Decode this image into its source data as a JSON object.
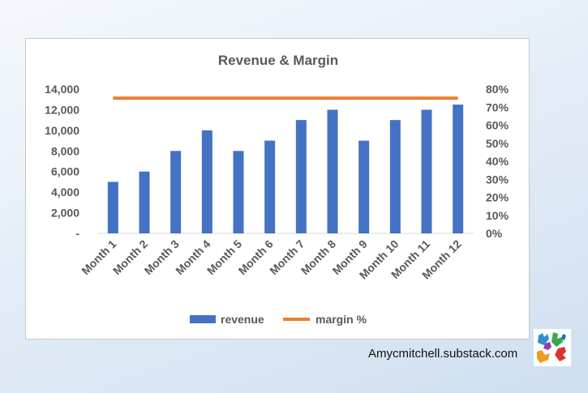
{
  "watermark": {
    "text": "Amycmitchell.substack.com",
    "logo_icon": "colorful-hands-logo"
  },
  "chart_data": {
    "type": "bar",
    "title": "Revenue & Margin",
    "categories": [
      "Month 1",
      "Month 2",
      "Month 3",
      "Month 4",
      "Month 5",
      "Month 6",
      "Month 7",
      "Month 8",
      "Month 9",
      "Month 10",
      "Month 11",
      "Month 12"
    ],
    "series": [
      {
        "name": "revenue",
        "type": "bar",
        "axis": "left",
        "color": "#4472C4",
        "values": [
          5000,
          6000,
          8000,
          10000,
          8000,
          9000,
          11000,
          12000,
          9000,
          11000,
          12000,
          12500
        ]
      },
      {
        "name": "margin %",
        "type": "line",
        "axis": "right",
        "color": "#ED7D31",
        "values": [
          0.75,
          0.75,
          0.75,
          0.75,
          0.75,
          0.75,
          0.75,
          0.75,
          0.75,
          0.75,
          0.75,
          0.75
        ]
      }
    ],
    "y_left": {
      "ylim": [
        0,
        14000
      ],
      "ticks": [
        0,
        2000,
        4000,
        6000,
        8000,
        10000,
        12000,
        14000
      ],
      "tick_labels": [
        "-",
        "2,000",
        "4,000",
        "6,000",
        "8,000",
        "10,000",
        "12,000",
        "14,000"
      ]
    },
    "y_right": {
      "ylim": [
        0,
        0.8
      ],
      "ticks": [
        0,
        0.1,
        0.2,
        0.3,
        0.4,
        0.5,
        0.6,
        0.7,
        0.8
      ],
      "tick_labels": [
        "0%",
        "10%",
        "20%",
        "30%",
        "40%",
        "50%",
        "60%",
        "70%",
        "80%"
      ]
    },
    "legend": "bottom",
    "grid": false
  }
}
